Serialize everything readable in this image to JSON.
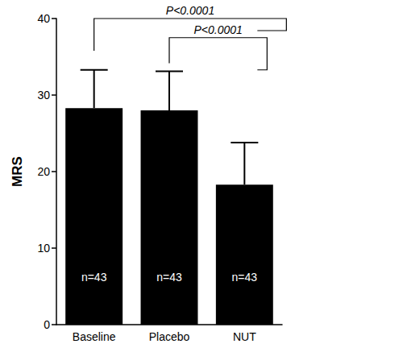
{
  "chart_data": {
    "type": "bar",
    "categories": [
      "Baseline",
      "Placebo",
      "NUT"
    ],
    "values": [
      28.3,
      28.0,
      18.3
    ],
    "errors": [
      5.0,
      5.1,
      5.5
    ],
    "color": "#000000",
    "y_label": "MRS",
    "ylim": [
      0,
      40
    ],
    "yticks": [
      0,
      10,
      20,
      30,
      40
    ],
    "grid": false,
    "bar_labels": [
      "n=43",
      "n=43",
      "n=43"
    ],
    "brackets": [
      {
        "from": "Baseline",
        "to": "NUT",
        "y": 40,
        "label": "P<0.0001"
      },
      {
        "from": "Placebo",
        "to": "NUT",
        "y": 37.5,
        "label": "P<0.0001"
      }
    ]
  }
}
